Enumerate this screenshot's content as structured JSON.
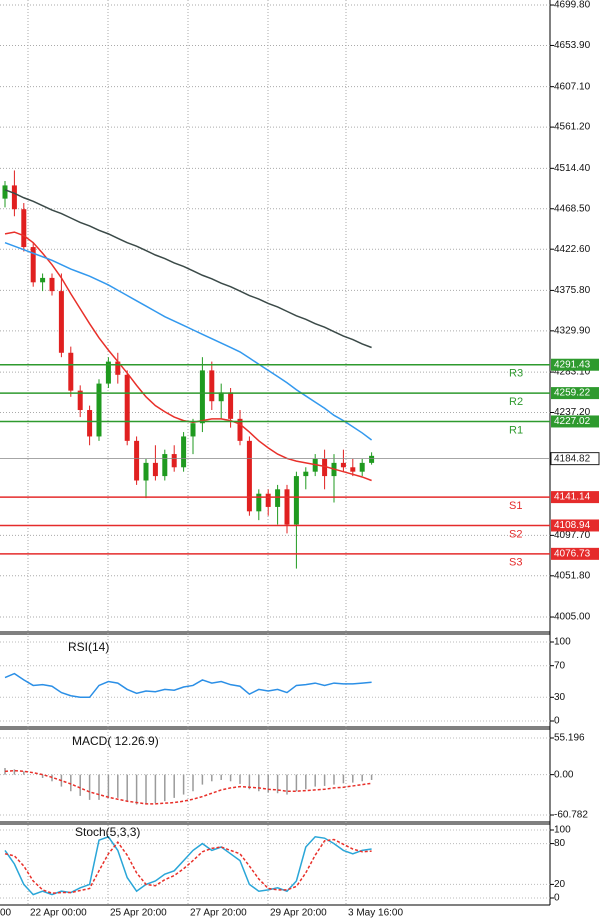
{
  "chart_data": {
    "type": "candlestick",
    "ylim": [
      3988,
      4705.5
    ],
    "yticks": [
      {
        "value": 4699.8,
        "label": "4699.80"
      },
      {
        "value": 4653.9,
        "label": "4653.90"
      },
      {
        "value": 4607.1,
        "label": "4607.10"
      },
      {
        "value": 4561.2,
        "label": "4561.20"
      },
      {
        "value": 4514.4,
        "label": "4514.40"
      },
      {
        "value": 4468.5,
        "label": "4468.50"
      },
      {
        "value": 4422.6,
        "label": "4422.60"
      },
      {
        "value": 4375.8,
        "label": "4375.80"
      },
      {
        "value": 4329.9,
        "label": "4329.90"
      },
      {
        "value": 4283.1,
        "label": "4283.10"
      },
      {
        "value": 4237.2,
        "label": "4237.20"
      },
      {
        "value": 4097.7,
        "label": "4097.70"
      },
      {
        "value": 4051.8,
        "label": "4051.80"
      },
      {
        "value": 4005,
        "label": "4005.00"
      }
    ],
    "grid": true,
    "x_labels": [
      "00",
      "22 Apr 00:00",
      "25 Apr 20:00",
      "27 Apr 20:00",
      "29 Apr 20:00",
      "3 May 16:00"
    ],
    "up_color": "#1f9a1f",
    "down_color": "#e02020",
    "open": [
      4480,
      4495,
      4468,
      4425,
      4385,
      4390,
      4375,
      4305,
      4262,
      4240,
      4210,
      4270,
      4295,
      4280,
      4205,
      4160,
      4180,
      4165,
      4190,
      4175,
      4210,
      4225,
      4285,
      4250,
      4260,
      4230,
      4205,
      4125,
      4145,
      4130,
      4150,
      4110,
      4165,
      4170,
      4185,
      4165,
      4180,
      4175,
      4170,
      4180
    ],
    "high": [
      4500,
      4512,
      4475,
      4430,
      4395,
      4395,
      4395,
      4312,
      4268,
      4245,
      4275,
      4300,
      4305,
      4285,
      4210,
      4185,
      4200,
      4195,
      4200,
      4215,
      4230,
      4300,
      4295,
      4270,
      4265,
      4240,
      4210,
      4150,
      4150,
      4155,
      4155,
      4170,
      4175,
      4190,
      4195,
      4190,
      4195,
      4185,
      4185,
      4192
    ],
    "low": [
      4470,
      4460,
      4420,
      4380,
      4375,
      4370,
      4300,
      4255,
      4232,
      4200,
      4205,
      4265,
      4270,
      4200,
      4155,
      4140,
      4160,
      4160,
      4170,
      4170,
      4190,
      4215,
      4240,
      4230,
      4220,
      4200,
      4120,
      4115,
      4120,
      4110,
      4100,
      4060,
      4150,
      4165,
      4150,
      4135,
      4170,
      4165,
      4165,
      4178
    ],
    "close": [
      4495,
      4468,
      4425,
      4385,
      4390,
      4375,
      4305,
      4262,
      4240,
      4210,
      4270,
      4295,
      4280,
      4205,
      4160,
      4180,
      4165,
      4190,
      4175,
      4210,
      4225,
      4285,
      4250,
      4260,
      4230,
      4205,
      4125,
      4145,
      4130,
      4150,
      4110,
      4165,
      4170,
      4185,
      4165,
      4180,
      4175,
      4170,
      4180,
      4188
    ],
    "series": [
      {
        "color": "#e8302a",
        "values": [
          4440,
          4442,
          4438,
          4430,
          4418,
          4405,
          4390,
          4372,
          4355,
          4338,
          4322,
          4308,
          4295,
          4282,
          4268,
          4255,
          4245,
          4238,
          4232,
          4228,
          4226,
          4228,
          4230,
          4230,
          4228,
          4224,
          4215,
          4205,
          4197,
          4190,
          4185,
          4182,
          4180,
          4178,
          4176,
          4173,
          4170,
          4167,
          4164,
          4160
        ]
      },
      {
        "color": "#3399ee",
        "values": [
          4430,
          4426,
          4422,
          4418,
          4414,
          4410,
          4405,
          4400,
          4396,
          4392,
          4387,
          4382,
          4376,
          4370,
          4364,
          4358,
          4352,
          4346,
          4341,
          4336,
          4331,
          4326,
          4321,
          4316,
          4311,
          4306,
          4299,
          4292,
          4285,
          4278,
          4271,
          4263,
          4256,
          4249,
          4242,
          4234,
          4228,
          4221,
          4214,
          4206
        ]
      },
      {
        "color": "#3b4a48",
        "values": [
          4490,
          4486,
          4481,
          4477,
          4472,
          4467,
          4463,
          4458,
          4453,
          4449,
          4444,
          4440,
          4435,
          4430,
          4426,
          4421,
          4416,
          4412,
          4407,
          4403,
          4398,
          4393,
          4389,
          4384,
          4380,
          4375,
          4370,
          4366,
          4361,
          4357,
          4352,
          4347,
          4343,
          4338,
          4334,
          4329,
          4324,
          4320,
          4315,
          4311
        ]
      }
    ],
    "levels": [
      {
        "name": "R3",
        "value": 4291.43,
        "color": "#2e9a2e"
      },
      {
        "name": "R2",
        "value": 4259.22,
        "color": "#2e9a2e"
      },
      {
        "name": "R1",
        "value": 4227.02,
        "color": "#2e9a2e"
      },
      {
        "name": "S1",
        "value": 4141.14,
        "color": "#e52b2b"
      },
      {
        "name": "S2",
        "value": 4108.94,
        "color": "#e52b2b"
      },
      {
        "name": "S3",
        "value": 4076.73,
        "color": "#e52b2b"
      }
    ],
    "current": {
      "value": 4184.82,
      "color": "#222222"
    }
  },
  "indicators": [
    {
      "type": "line",
      "title": "RSI(14)",
      "ylim": [
        0,
        100
      ],
      "yticks": [
        100,
        70,
        30,
        0
      ],
      "series": [
        {
          "color": "#2b8fe6",
          "values": [
            55,
            60,
            52,
            45,
            46,
            44,
            36,
            32,
            30,
            30,
            45,
            50,
            48,
            40,
            35,
            38,
            37,
            40,
            39,
            43,
            45,
            52,
            48,
            50,
            46,
            44,
            34,
            40,
            38,
            40,
            36,
            45,
            46,
            48,
            45,
            48,
            47,
            47,
            48,
            49
          ]
        }
      ]
    },
    {
      "type": "macd",
      "title": "MACD( 12.26.9)",
      "ylim": [
        -60.782,
        55.196
      ],
      "yticks": [
        55.196,
        {
          "value": 0,
          "label": "0.00"
        },
        -60.782
      ],
      "histogram_color": "#9a9a9a",
      "histogram": [
        10,
        8,
        5,
        0,
        -5,
        -10,
        -18,
        -25,
        -32,
        -38,
        -38,
        -35,
        -35,
        -40,
        -45,
        -45,
        -43,
        -40,
        -35,
        -30,
        -25,
        -15,
        -10,
        -8,
        -10,
        -14,
        -22,
        -25,
        -27,
        -28,
        -30,
        -25,
        -22,
        -18,
        -17,
        -15,
        -13,
        -12,
        -10,
        -8
      ],
      "signal_color": "#e8302a",
      "signal": [
        5,
        6,
        5,
        3,
        0,
        -4,
        -9,
        -14,
        -20,
        -26,
        -30,
        -34,
        -37,
        -40,
        -42,
        -44,
        -44,
        -43,
        -42,
        -40,
        -37,
        -33,
        -28,
        -23,
        -20,
        -18,
        -19,
        -20,
        -22,
        -23,
        -25,
        -25,
        -24,
        -23,
        -22,
        -20,
        -19,
        -17,
        -15,
        -13
      ]
    },
    {
      "type": "stoch",
      "title": "Stoch(5,3,3)",
      "ylim": [
        0,
        100
      ],
      "yticks": [
        100,
        80,
        20,
        0
      ],
      "main_color": "#2aa6d8",
      "main": [
        70,
        50,
        20,
        5,
        10,
        5,
        10,
        8,
        15,
        20,
        85,
        90,
        70,
        30,
        10,
        20,
        25,
        35,
        40,
        55,
        70,
        80,
        70,
        75,
        65,
        55,
        20,
        10,
        12,
        15,
        10,
        25,
        75,
        90,
        88,
        80,
        70,
        65,
        70,
        72
      ],
      "signal_color": "#e8302a",
      "signal": [
        65,
        62,
        47,
        25,
        12,
        7,
        8,
        8,
        11,
        14,
        40,
        65,
        82,
        63,
        37,
        20,
        18,
        27,
        33,
        43,
        55,
        68,
        73,
        75,
        70,
        65,
        47,
        28,
        14,
        12,
        12,
        17,
        37,
        63,
        84,
        86,
        79,
        72,
        68,
        69
      ]
    }
  ]
}
